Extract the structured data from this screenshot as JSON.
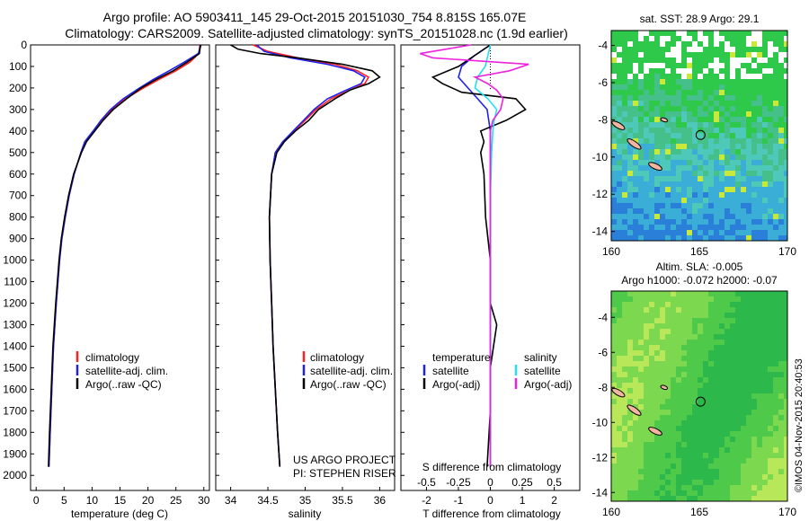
{
  "title": {
    "line1": "Argo profile: AO 5903411_145 29-Oct-2015 20151030_754 8.815S 165.07E",
    "line2": "Climatology: CARS2009. Satellite-adjusted climatology: synTS_20151028.nc (1.9d earlier)"
  },
  "stamp": "©IMOS 04-Nov-2015 20:40:53",
  "project_note": {
    "line1": "US ARGO PROJECT",
    "line2": "PI: STEPHEN RISER"
  },
  "colors": {
    "climatology": "#ff2020",
    "satellite": "#2020ee",
    "argo": "#000000",
    "satellite_s": "#22e0f0",
    "argo_s": "#ee22dd"
  },
  "chart_data": [
    {
      "type": "line",
      "name": "temperature-profile",
      "xlabel": "temperature (deg C)",
      "ylabel": "",
      "xlim": [
        -1,
        31
      ],
      "ylim": [
        2070,
        0
      ],
      "x_ticks": [
        0,
        5,
        10,
        15,
        20,
        25,
        30
      ],
      "y_ticks": [
        0,
        100,
        200,
        300,
        400,
        500,
        600,
        700,
        800,
        900,
        1000,
        1100,
        1200,
        1300,
        1400,
        1500,
        1600,
        1700,
        1800,
        1900,
        2000
      ],
      "legend": [
        "climatology",
        "satellite-adj. clim.",
        "Argo(..raw -QC)"
      ],
      "legend_placement": "lower-right",
      "series": [
        {
          "name": "climatology",
          "depth": [
            0,
            40,
            80,
            120,
            160,
            200,
            250,
            300,
            350,
            400,
            450,
            500,
            600,
            700,
            800,
            900,
            1000,
            1200,
            1400,
            1600,
            1800,
            1960
          ],
          "values": [
            29.3,
            29.1,
            27.5,
            25.0,
            22.0,
            19.2,
            16.0,
            13.5,
            11.8,
            10.3,
            8.8,
            8.0,
            6.8,
            5.9,
            5.2,
            4.6,
            4.2,
            3.6,
            3.1,
            2.8,
            2.5,
            2.3
          ]
        },
        {
          "name": "satellite-adj. clim.",
          "depth": [
            0,
            40,
            80,
            120,
            160,
            200,
            250,
            300,
            350,
            400,
            450,
            500,
            600,
            700,
            800,
            900,
            1000,
            1200,
            1400,
            1600,
            1800,
            1960
          ],
          "values": [
            29.5,
            29.0,
            26.5,
            23.8,
            21.0,
            18.5,
            15.6,
            13.3,
            11.6,
            10.2,
            8.7,
            8.0,
            6.8,
            5.9,
            5.2,
            4.6,
            4.2,
            3.6,
            3.1,
            2.8,
            2.5,
            2.3
          ]
        },
        {
          "name": "Argo(..raw -QC)",
          "depth": [
            0,
            40,
            80,
            120,
            160,
            200,
            250,
            300,
            350,
            400,
            450,
            500,
            600,
            700,
            800,
            900,
            1000,
            1200,
            1400,
            1600,
            1800,
            1960
          ],
          "values": [
            29.4,
            29.2,
            27.0,
            24.5,
            21.5,
            18.8,
            16.2,
            13.8,
            12.0,
            10.5,
            9.0,
            8.1,
            6.7,
            5.8,
            5.1,
            4.5,
            4.1,
            3.5,
            3.0,
            2.7,
            2.4,
            2.2
          ]
        }
      ]
    },
    {
      "type": "line",
      "name": "salinity-profile",
      "xlabel": "salinity",
      "xlim": [
        33.8,
        36.2
      ],
      "ylim": [
        2070,
        0
      ],
      "x_ticks": [
        34,
        34.5,
        35,
        35.5,
        36
      ],
      "x_tick_labels": [
        "34",
        "34.5",
        "35",
        "35.5",
        "36"
      ],
      "legend": [
        "climatology",
        "satellite-adj. clim.",
        "Argo(..raw -QC)"
      ],
      "legend_placement": "lower-right",
      "series": [
        {
          "name": "climatology",
          "depth": [
            0,
            30,
            60,
            90,
            120,
            150,
            180,
            210,
            250,
            300,
            350,
            400,
            450,
            500,
            600,
            800,
            1000,
            1200,
            1400,
            1600,
            1800,
            1960
          ],
          "values": [
            34.3,
            34.5,
            34.9,
            35.4,
            35.7,
            35.85,
            35.8,
            35.6,
            35.35,
            35.15,
            35.0,
            34.85,
            34.7,
            34.6,
            34.55,
            34.52,
            34.53,
            34.55,
            34.57,
            34.6,
            34.63,
            34.66
          ]
        },
        {
          "name": "satellite-adj. clim.",
          "depth": [
            0,
            30,
            60,
            90,
            120,
            150,
            180,
            210,
            250,
            300,
            350,
            400,
            450,
            500,
            600,
            800,
            1000,
            1200,
            1400,
            1600,
            1800,
            1960
          ],
          "values": [
            34.35,
            34.45,
            34.8,
            35.3,
            35.65,
            35.8,
            35.75,
            35.55,
            35.3,
            35.12,
            34.98,
            34.84,
            34.7,
            34.6,
            34.55,
            34.52,
            34.53,
            34.55,
            34.57,
            34.6,
            34.63,
            34.66
          ]
        },
        {
          "name": "Argo(..raw -QC)",
          "depth": [
            0,
            20,
            40,
            60,
            90,
            120,
            150,
            180,
            210,
            250,
            300,
            350,
            400,
            450,
            500,
            600,
            800,
            1000,
            1200,
            1400,
            1600,
            1800,
            1960
          ],
          "values": [
            34.0,
            34.1,
            34.4,
            34.9,
            35.5,
            35.9,
            36.0,
            35.85,
            35.6,
            35.4,
            35.18,
            35.05,
            34.87,
            34.72,
            34.62,
            34.55,
            34.52,
            34.53,
            34.55,
            34.57,
            34.6,
            34.63,
            34.66
          ]
        }
      ]
    },
    {
      "type": "line",
      "name": "difference-profile",
      "xlabel": "T difference from climatology",
      "top_axis_label": "S difference from climatology",
      "xlim": [
        -2.8,
        2.8
      ],
      "ylim": [
        2070,
        0
      ],
      "x_ticks": [
        -2,
        -1,
        0,
        1,
        2
      ],
      "top_ticks": [
        -0.5,
        -0.25,
        0,
        0.25,
        0.5
      ],
      "top_tick_labels": [
        "-0.5",
        "-0.25",
        "0",
        "0.25",
        "0.5"
      ],
      "legend_temperature_header": "temperature",
      "legend_salinity_header": "salinity",
      "legend": [
        "satellite",
        "Argo(-adj)",
        "satellite",
        "Argo(-adj)"
      ],
      "series": [
        {
          "name": "temperature satellite",
          "depth": [
            0,
            50,
            100,
            150,
            200,
            250,
            300,
            350,
            400,
            450,
            500,
            700,
            1000,
            1300,
            1600,
            1960
          ],
          "values": [
            0.0,
            -0.5,
            -0.9,
            -1.0,
            -0.7,
            -0.4,
            -0.1,
            -0.05,
            0.0,
            0.0,
            0.0,
            0.0,
            0.0,
            0.0,
            0.0,
            0.0
          ]
        },
        {
          "name": "temperature Argo(-adj)",
          "depth": [
            0,
            50,
            100,
            150,
            180,
            220,
            250,
            300,
            350,
            400,
            450,
            500,
            600,
            800,
            1000,
            1200,
            1300,
            1500,
            1700,
            1960
          ],
          "values": [
            0.0,
            -0.5,
            -1.0,
            -1.8,
            -1.5,
            -0.9,
            0.8,
            1.1,
            0.5,
            -0.3,
            -0.2,
            -0.3,
            -0.2,
            -0.15,
            0.0,
            0.0,
            0.2,
            0.0,
            0.0,
            -0.1
          ]
        },
        {
          "name": "salinity satellite",
          "depth": [
            0,
            50,
            100,
            150,
            200,
            250,
            300,
            350,
            400,
            500,
            700,
            1000,
            1300,
            1600,
            1960
          ],
          "values": [
            0.0,
            -0.02,
            -0.04,
            -0.1,
            -0.12,
            -0.02,
            0.05,
            0.03,
            0.02,
            0.01,
            0.0,
            0.0,
            0.0,
            0.0,
            0.0
          ]
        },
        {
          "name": "salinity Argo(-adj)",
          "depth": [
            0,
            20,
            40,
            60,
            90,
            120,
            150,
            180,
            210,
            250,
            300,
            350,
            400,
            500,
            700,
            1000,
            1300,
            1600,
            1960
          ],
          "values": [
            -0.15,
            -0.35,
            -0.55,
            -0.45,
            0.3,
            0.15,
            -0.12,
            -0.02,
            0.05,
            0.1,
            0.08,
            0.02,
            0.0,
            0.0,
            0.0,
            0.0,
            0.0,
            0.0,
            0.0
          ]
        }
      ]
    },
    {
      "type": "heatmap",
      "name": "sst-map",
      "title": "sat. SST: 28.9 Argo: 29.1",
      "xlim": [
        160,
        170
      ],
      "ylim": [
        -14.5,
        -3.2
      ],
      "x_ticks": [
        160,
        165,
        170
      ],
      "y_ticks": [
        -4,
        -6,
        -8,
        -10,
        -12,
        -14
      ],
      "argo_location": {
        "lon": 165.07,
        "lat": -8.815
      }
    },
    {
      "type": "heatmap",
      "name": "sla-map",
      "title": "Altim. SLA: -0.005",
      "subtitle": "Argo h1000: -0.072 h2000: -0.07",
      "xlim": [
        160,
        170
      ],
      "ylim": [
        -14.5,
        -2.5
      ],
      "x_ticks": [
        160,
        165,
        170
      ],
      "y_ticks": [
        -4,
        -6,
        -8,
        -10,
        -12,
        -14
      ],
      "argo_location": {
        "lon": 165.07,
        "lat": -8.815
      }
    }
  ]
}
